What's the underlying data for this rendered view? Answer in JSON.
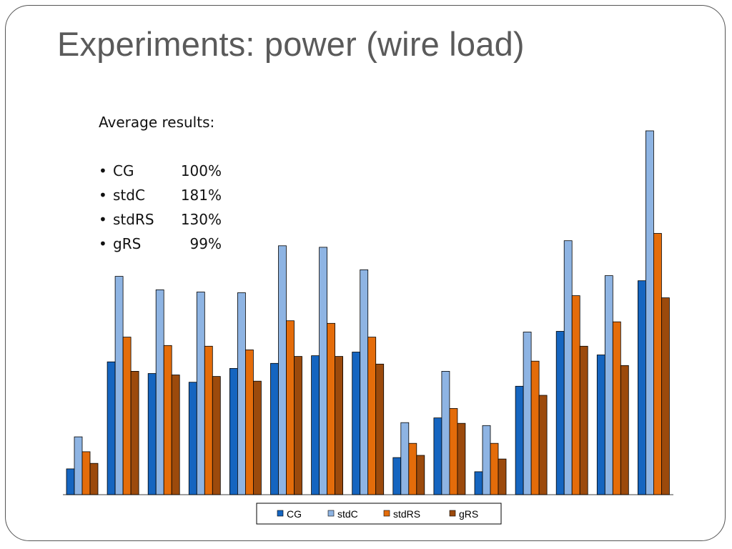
{
  "slide": {
    "title": "Experiments: power (wire load)",
    "summary": {
      "heading": "Average results:",
      "bullet": "•",
      "items": [
        {
          "name": "CG",
          "value": "100%"
        },
        {
          "name": "stdC",
          "value": "181%"
        },
        {
          "name": "stdRS",
          "value": "130%"
        },
        {
          "name": "gRS",
          "value": "99%"
        }
      ]
    }
  },
  "chart_data": {
    "type": "bar",
    "title": "",
    "xlabel": "",
    "ylabel": "",
    "categories": [
      "",
      "",
      "",
      "",
      "",
      "",
      "",
      "",
      "",
      "",
      "",
      "",
      "",
      "",
      ""
    ],
    "ylim": [
      0,
      100
    ],
    "grid": false,
    "legend_position": "bottom",
    "series": [
      {
        "name": "CG",
        "color": "#1565C0",
        "values": [
          7.1,
          36.5,
          33.3,
          30.9,
          34.7,
          36.1,
          38.2,
          39.2,
          10.2,
          21.1,
          6.3,
          29.8,
          44.9,
          38.4,
          58.8
        ]
      },
      {
        "name": "stdC",
        "color": "#8EB4E3",
        "values": [
          15.9,
          60.0,
          56.3,
          55.7,
          55.5,
          68.4,
          68.0,
          61.8,
          19.8,
          33.9,
          19.0,
          44.7,
          69.8,
          60.2,
          100.0
        ]
      },
      {
        "name": "stdRS",
        "color": "#E46C0A",
        "values": [
          11.8,
          43.3,
          41.0,
          40.8,
          39.8,
          47.8,
          47.1,
          43.3,
          14.1,
          23.7,
          14.1,
          36.7,
          54.7,
          47.5,
          71.8
        ]
      },
      {
        "name": "gRS",
        "color": "#9C4A0C",
        "values": [
          8.6,
          33.9,
          32.9,
          32.5,
          31.2,
          38.0,
          38.0,
          35.9,
          10.8,
          19.6,
          9.8,
          27.3,
          40.8,
          35.5,
          54.1
        ]
      }
    ]
  }
}
